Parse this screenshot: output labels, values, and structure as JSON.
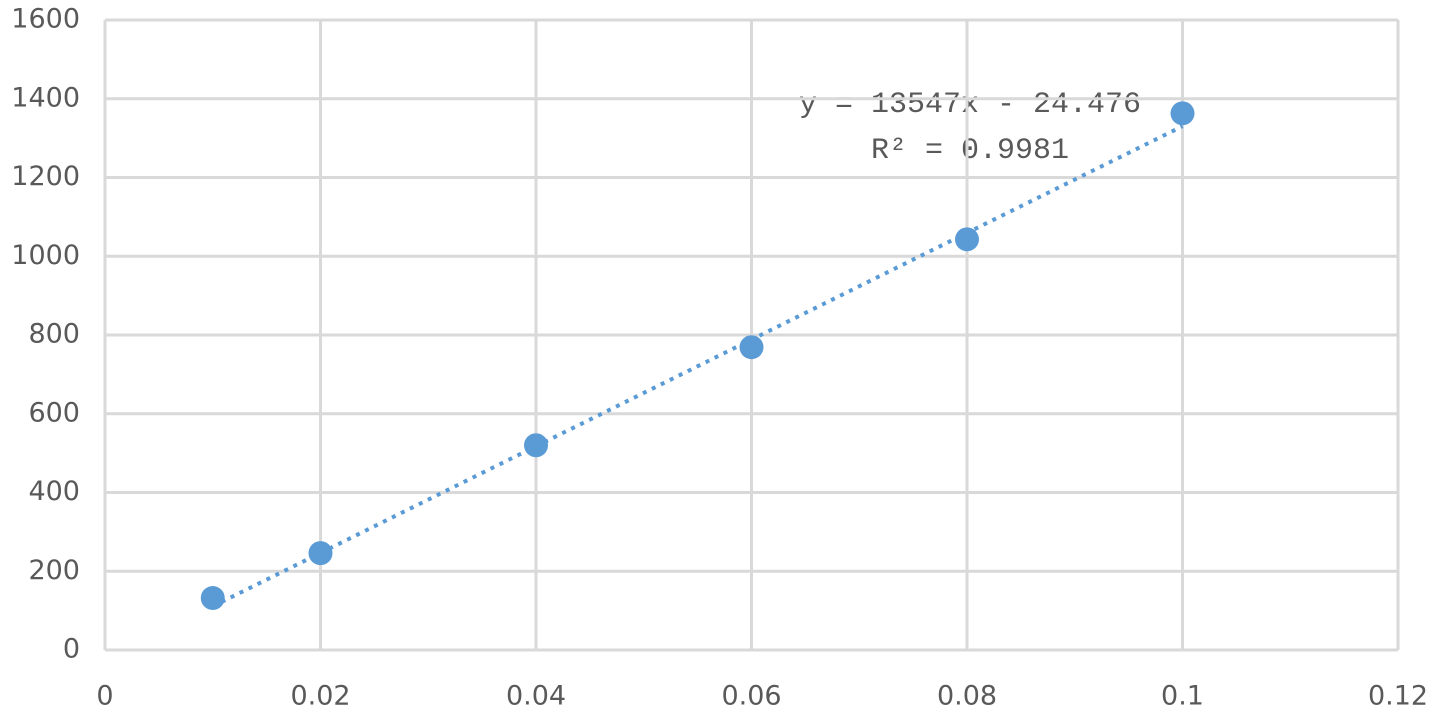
{
  "chart_data": {
    "type": "scatter",
    "x": [
      0.01,
      0.02,
      0.04,
      0.06,
      0.08,
      0.1
    ],
    "series": [
      {
        "color": "#5b9bd5",
        "values": [
          132,
          246,
          520,
          769,
          1043,
          1363
        ]
      }
    ],
    "xlim": [
      0,
      0.12
    ],
    "xticks": [
      0,
      0.02,
      0.04,
      0.06,
      0.08,
      0.1,
      0.12
    ],
    "ylim": [
      0,
      1600
    ],
    "yticks": [
      0,
      200,
      400,
      600,
      800,
      1000,
      1200,
      1400,
      1600
    ],
    "grid": true,
    "trendline": {
      "slope": 13547,
      "intercept": -24.476,
      "equation": "y = 13547x - 24.476",
      "r_squared": "R² = 0.9981"
    }
  }
}
